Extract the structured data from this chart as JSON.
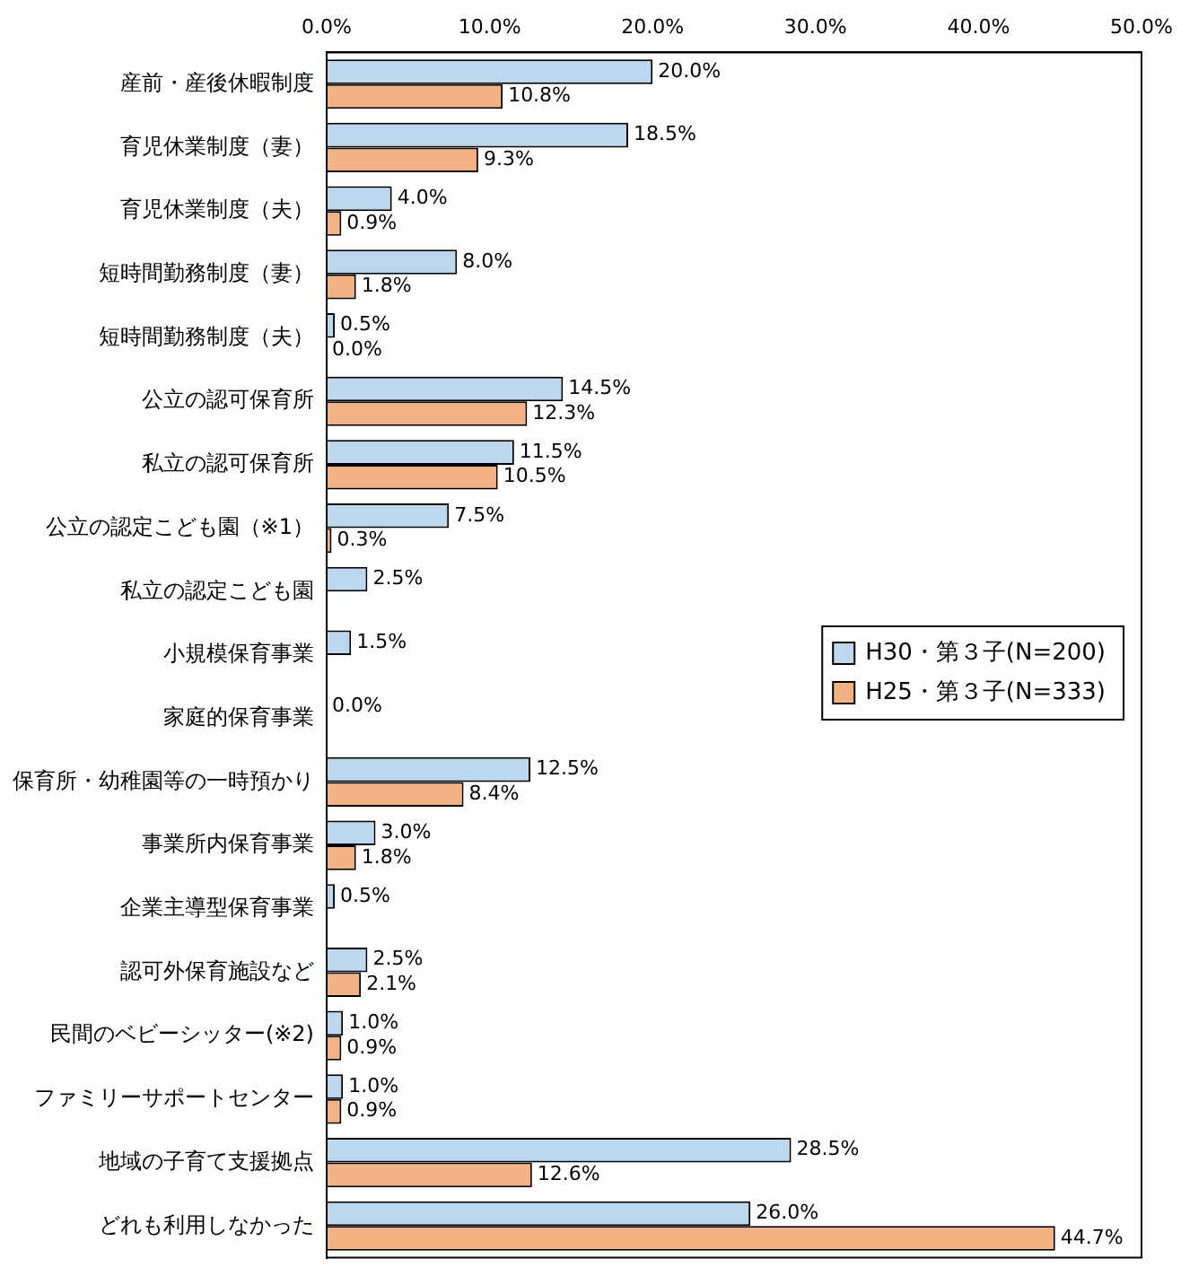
{
  "chart_data": {
    "type": "bar",
    "orientation": "horizontal",
    "categories": [
      "産前・産後休暇制度",
      "育児休業制度（妻）",
      "育児休業制度（夫）",
      "短時間勤務制度（妻）",
      "短時間勤務制度（夫）",
      "公立の認可保育所",
      "私立の認可保育所",
      "公立の認定こども園（※1）",
      "私立の認定こども園",
      "小規模保育事業",
      "家庭的保育事業",
      "保育所・幼稚園等の一時預かり",
      "事業所内保育事業",
      "企業主導型保育事業",
      "認可外保育施設など",
      "民間のベビーシッター(※2)",
      "ファミリーサポートセンター",
      "地域の子育て支援拠点",
      "どれも利用しなかった"
    ],
    "series": [
      {
        "name": "H30・第３子(N=200)",
        "color": "#bdd7ee",
        "values": [
          20.0,
          18.5,
          4.0,
          8.0,
          0.5,
          14.5,
          11.5,
          7.5,
          2.5,
          1.5,
          0.0,
          12.5,
          3.0,
          0.5,
          2.5,
          1.0,
          1.0,
          28.5,
          26.0
        ],
        "value_labels": [
          "20.0%",
          "18.5%",
          "4.0%",
          "8.0%",
          "0.5%",
          "14.5%",
          "11.5%",
          "7.5%",
          "2.5%",
          "1.5%",
          "0.0%",
          "12.5%",
          "3.0%",
          "0.5%",
          "2.5%",
          "1.0%",
          "1.0%",
          "28.5%",
          "26.0%"
        ]
      },
      {
        "name": "H25・第３子(N=333)",
        "color": "#f4b183",
        "values": [
          10.8,
          9.3,
          0.9,
          1.8,
          0.0,
          12.3,
          10.5,
          0.3,
          null,
          null,
          null,
          8.4,
          1.8,
          null,
          2.1,
          0.9,
          0.9,
          12.6,
          44.7
        ],
        "value_labels": [
          "10.8%",
          "9.3%",
          "0.9%",
          "1.8%",
          "0.0%",
          "12.3%",
          "10.5%",
          "0.3%",
          null,
          null,
          null,
          "8.4%",
          "1.8%",
          null,
          "2.1%",
          "0.9%",
          "0.9%",
          "12.6%",
          "44.7%"
        ]
      }
    ],
    "xlim": [
      0,
      50
    ],
    "xticks": [
      {
        "value": 0,
        "label": "0.0%"
      },
      {
        "value": 10,
        "label": "10.0%"
      },
      {
        "value": 20,
        "label": "20.0%"
      },
      {
        "value": 30,
        "label": "30.0%"
      },
      {
        "value": 40,
        "label": "40.0%"
      },
      {
        "value": 50,
        "label": "50.0%"
      }
    ],
    "legend": "right"
  }
}
